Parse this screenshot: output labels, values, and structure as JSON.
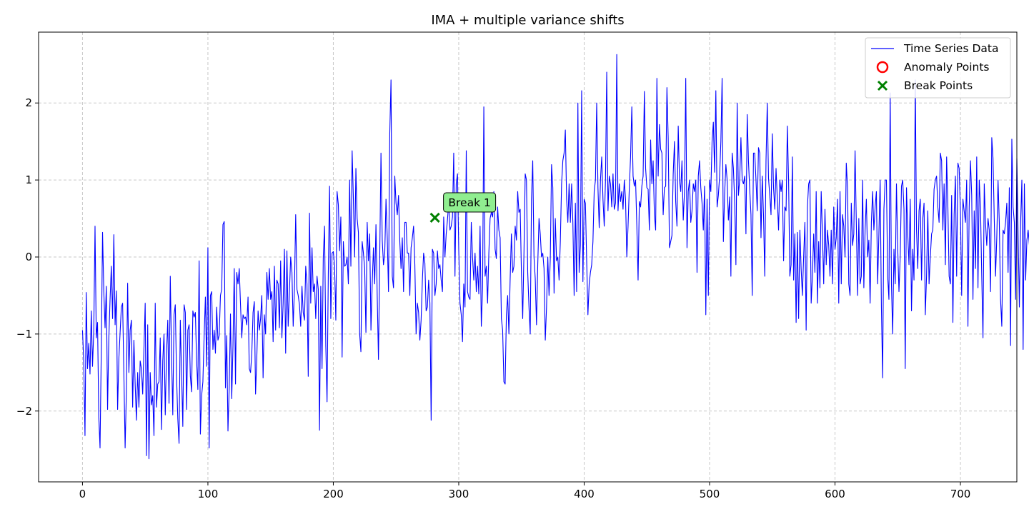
{
  "chart_data": {
    "type": "line",
    "title": "IMA + multiple variance shifts",
    "xlabel": "",
    "ylabel": "",
    "xlim": [
      -35,
      745
    ],
    "ylim": [
      -2.92,
      2.92
    ],
    "x_ticks": [
      0,
      100,
      200,
      300,
      400,
      500,
      600,
      700
    ],
    "y_ticks": [
      -2,
      -1,
      0,
      1,
      2
    ],
    "x_tick_labels": [
      "0",
      "100",
      "200",
      "300",
      "400",
      "500",
      "600",
      "700"
    ],
    "y_tick_labels": [
      "−2",
      "−1",
      "0",
      "1",
      "2"
    ],
    "grid": true,
    "legend_position": "top-right",
    "series": [
      {
        "name": "Time Series Data",
        "style": "line",
        "color": "#0000ff",
        "x_start": 0,
        "x_step": 1,
        "values": [
          -0.95,
          -1.35,
          -2.32,
          -0.46,
          -1.45,
          -1.12,
          -1.52,
          -0.7,
          -1.42,
          -0.95,
          0.4,
          -1.05,
          -0.85,
          -2.08,
          -2.48,
          -1.2,
          0.32,
          -0.45,
          -0.92,
          -0.38,
          -1.98,
          -1.05,
          -0.55,
          -0.12,
          -0.8,
          0.29,
          -0.88,
          -0.44,
          -1.98,
          -1.32,
          -0.98,
          -0.65,
          -0.6,
          -1.52,
          -2.48,
          -1.75,
          -0.34,
          -1.5,
          -0.95,
          -0.82,
          -1.95,
          -1.08,
          -1.65,
          -2.12,
          -1.5,
          -1.95,
          -1.35,
          -1.45,
          -1.78,
          -1.2,
          -0.6,
          -2.58,
          -0.88,
          -2.62,
          -1.5,
          -1.92,
          -1.8,
          -2.32,
          -0.6,
          -1.95,
          -1.65,
          -1.62,
          -1.05,
          -2.24,
          -1.35,
          -1.0,
          -2.05,
          -1.25,
          -0.82,
          -1.9,
          -0.25,
          -1.25,
          -2.05,
          -0.75,
          -0.62,
          -1.55,
          -2.1,
          -2.42,
          -0.82,
          -1.52,
          -2.2,
          -0.62,
          -0.72,
          -1.98,
          -0.95,
          -0.88,
          -1.55,
          -1.75,
          -0.7,
          -0.78,
          -0.72,
          -1.35,
          -1.72,
          -0.05,
          -2.3,
          -1.8,
          -1.62,
          -1.02,
          -0.52,
          -1.42,
          0.12,
          -2.48,
          -0.5,
          -0.45,
          -1.2,
          -0.95,
          -1.25,
          -0.65,
          -1.08,
          -1.02,
          -0.5,
          -0.42,
          0.42,
          0.46,
          -1.7,
          -1.02,
          -2.26,
          -1.68,
          -0.74,
          -1.84,
          -1.15,
          -0.15,
          -1.65,
          -0.2,
          -0.35,
          -0.15,
          -0.62,
          -1.05,
          -0.75,
          -0.8,
          -0.78,
          -0.88,
          -0.52,
          -1.45,
          -1.5,
          -1.25,
          -0.72,
          -0.58,
          -1.78,
          -1.3,
          -0.7,
          -0.95,
          -0.8,
          -0.5,
          -1.57,
          -0.75,
          -1.0,
          -0.2,
          -0.55,
          -0.15,
          -0.55,
          -0.45,
          -1.1,
          -0.12,
          -0.95,
          -0.3,
          -0.35,
          -0.92,
          -0.05,
          -1.05,
          -0.6,
          0.1,
          -1.25,
          0.08,
          -0.9,
          -0.45,
          0.0,
          -0.2,
          -0.9,
          -0.4,
          0.55,
          -0.42,
          -0.5,
          -0.62,
          -0.9,
          -0.38,
          -0.72,
          -0.82,
          -0.12,
          -0.35,
          -1.55,
          0.57,
          -0.6,
          0.12,
          -0.45,
          -0.35,
          -0.8,
          -0.25,
          -0.42,
          -2.25,
          -0.38,
          -1.45,
          0.0,
          0.4,
          -1.15,
          -1.88,
          -0.22,
          0.92,
          -0.8,
          0.05,
          0.07,
          -0.12,
          -0.82,
          0.85,
          0.68,
          0.08,
          0.52,
          -1.3,
          0.2,
          -0.12,
          -0.1,
          0.0,
          -0.35,
          1.0,
          -0.12,
          1.38,
          0.75,
          0.0,
          1.15,
          0.5,
          0.32,
          -1.0,
          -1.23,
          0.2,
          0.05,
          -0.15,
          -0.98,
          0.45,
          -0.05,
          0.3,
          -0.95,
          -0.35,
          0.12,
          -0.35,
          0.42,
          -0.5,
          -1.33,
          0.0,
          1.35,
          0.22,
          -0.1,
          0.05,
          0.75,
          0.25,
          -0.45,
          1.6,
          2.3,
          -0.25,
          -0.4,
          1.05,
          0.7,
          0.55,
          0.8,
          0.2,
          -0.15,
          0.25,
          -0.45,
          0.45,
          0.45,
          0.05,
          0.05,
          -0.5,
          0.12,
          0.25,
          0.4,
          -0.1,
          -1.0,
          -0.6,
          -0.72,
          -1.08,
          -0.82,
          -0.3,
          0.05,
          -0.08,
          -0.7,
          -0.65,
          -0.3,
          -0.6,
          -2.12,
          0.1,
          0.05,
          -0.5,
          -0.35,
          0.08,
          -0.15,
          -0.1,
          -0.3,
          -0.45,
          0.52,
          0.0,
          0.3,
          0.48,
          0.7,
          0.35,
          0.4,
          0.52,
          1.35,
          -0.25,
          0.95,
          1.08,
          0.1,
          -0.6,
          -0.75,
          -1.1,
          -0.35,
          -0.65,
          1.38,
          -0.45,
          -0.52,
          -0.55,
          0.45,
          0.0,
          -0.3,
          0.05,
          -0.45,
          -0.12,
          -0.48,
          0.4,
          -0.9,
          -0.4,
          1.95,
          -0.25,
          -0.12,
          -0.6,
          0.05,
          0.5,
          0.58,
          0.52,
          0.85,
          0.1,
          -0.02,
          0.65,
          0.35,
          0.25,
          -0.8,
          -0.95,
          -1.62,
          -1.65,
          -0.75,
          -0.5,
          -1.0,
          -0.28,
          0.3,
          -0.2,
          -0.12,
          0.4,
          0.22,
          0.85,
          0.58,
          0.62,
          -0.22,
          -0.8,
          0.05,
          1.08,
          1.0,
          -0.2,
          -0.65,
          -1.0,
          0.75,
          1.25,
          0.0,
          -0.28,
          -0.88,
          -0.1,
          0.5,
          0.3,
          0.0,
          0.05,
          -0.15,
          -1.08,
          -0.65,
          0.0,
          -0.5,
          -0.02,
          1.2,
          0.9,
          -0.47,
          0.5,
          -0.05,
          0.0,
          -0.3,
          0.2,
          0.95,
          1.25,
          1.35,
          1.65,
          0.75,
          0.45,
          0.95,
          0.45,
          0.95,
          0.45,
          -0.5,
          0.7,
          -0.45,
          2.0,
          -0.2,
          0.15,
          2.16,
          -0.32,
          0.75,
          0.7,
          -0.05,
          -0.75,
          -0.35,
          -0.2,
          -0.1,
          0.2,
          0.85,
          1.0,
          2.0,
          0.9,
          0.38,
          1.0,
          1.3,
          0.75,
          0.4,
          1.0,
          2.4,
          0.6,
          1.05,
          0.95,
          0.65,
          1.08,
          0.62,
          0.7,
          2.63,
          0.6,
          0.95,
          0.72,
          0.85,
          0.62,
          1.0,
          0.75,
          0.0,
          0.4,
          0.9,
          1.3,
          1.95,
          1.05,
          0.92,
          1.0,
          0.4,
          -0.3,
          0.72,
          0.65,
          0.92,
          1.05,
          2.15,
          1.15,
          0.9,
          0.88,
          0.35,
          1.52,
          0.95,
          1.25,
          0.55,
          0.35,
          2.32,
          1.05,
          1.72,
          1.4,
          1.35,
          0.55,
          0.9,
          0.92,
          2.2,
          1.55,
          0.12,
          0.2,
          0.28,
          1.08,
          1.5,
          0.72,
          0.4,
          1.7,
          1.0,
          0.85,
          1.25,
          0.48,
          0.85,
          2.32,
          0.12,
          0.85,
          1.0,
          0.45,
          0.6,
          0.95,
          0.85,
          1.0,
          -0.2,
          1.05,
          1.25,
          0.9,
          0.7,
          0.35,
          0.92,
          -0.75,
          0.75,
          -0.5,
          1.0,
          0.85,
          1.5,
          1.75,
          1.1,
          2.16,
          0.65,
          0.8,
          1.05,
          1.5,
          2.32,
          0.2,
          0.82,
          1.2,
          1.0,
          0.48,
          0.78,
          -0.25,
          1.35,
          1.15,
          0.72,
          -0.1,
          2.0,
          0.8,
          1.0,
          1.55,
          1.0,
          0.95,
          1.05,
          0.3,
          1.85,
          1.25,
          0.88,
          0.55,
          -0.5,
          1.35,
          1.35,
          1.0,
          0.6,
          1.42,
          1.35,
          0.25,
          1.05,
          0.55,
          -0.25,
          1.25,
          2.0,
          1.02,
          0.8,
          0.55,
          1.6,
          0.9,
          0.62,
          1.15,
          0.75,
          0.35,
          1.0,
          0.85,
          1.0,
          -0.05,
          0.65,
          0.6,
          1.7,
          1.0,
          -0.25,
          -0.1,
          1.3,
          -0.3,
          0.3,
          -0.85,
          0.32,
          -0.8,
          0.35,
          -0.15,
          -0.5,
          0.0,
          0.45,
          -0.95,
          0.65,
          0.95,
          1.0,
          -0.6,
          -0.25,
          0.3,
          -0.2,
          0.85,
          -0.6,
          0.2,
          -0.4,
          0.85,
          0.28,
          -0.35,
          0.62,
          -0.1,
          0.35,
          0.15,
          -0.25,
          0.35,
          -0.35,
          0.65,
          0.1,
          0.25,
          0.75,
          -0.6,
          0.85,
          -0.35,
          0.55,
          0.4,
          0.0,
          1.22,
          0.9,
          -0.35,
          -0.5,
          0.7,
          0.15,
          0.3,
          1.38,
          0.45,
          -0.5,
          0.5,
          -0.35,
          -0.25,
          1.0,
          -0.4,
          0.35,
          0.75,
          0.0,
          0.22,
          -0.6,
          0.45,
          0.85,
          0.35,
          0.65,
          0.85,
          -0.35,
          0.3,
          1.0,
          -0.65,
          -1.57,
          0.62,
          1.0,
          1.0,
          -0.25,
          -0.55,
          2.13,
          -0.35,
          -1.0,
          0.1,
          -0.35,
          0.95,
          0.12,
          -0.45,
          0.0,
          0.92,
          1.0,
          0.62,
          -1.45,
          0.9,
          0.3,
          -0.1,
          0.75,
          -0.7,
          0.1,
          -0.3,
          2.3,
          0.35,
          -0.15,
          0.6,
          0.75,
          -0.3,
          0.5,
          0.7,
          -0.75,
          -0.25,
          0.6,
          -0.35,
          0.0,
          0.3,
          0.35,
          0.88,
          1.0,
          1.05,
          0.65,
          0.45,
          1.35,
          1.25,
          0.35,
          0.95,
          -0.1,
          1.3,
          0.65,
          -0.25,
          -0.35,
          0.8,
          -0.85,
          0.55,
          1.05,
          -0.25,
          1.22,
          1.15,
          0.6,
          -0.5,
          0.75,
          0.6,
          0.45,
          1.0,
          -0.9,
          0.65,
          1.25,
          0.8,
          -0.55,
          0.6,
          -0.15,
          1.3,
          -0.4,
          1.0,
          0.65,
          -0.25,
          -1.05,
          0.95,
          0.45,
          0.15,
          0.5,
          0.35,
          -0.45,
          1.55,
          1.28,
          0.48,
          -0.25,
          0.25,
          1.0,
          0.45,
          -0.55,
          -0.9,
          0.35,
          0.3,
          0.45,
          0.7,
          -0.2,
          0.9,
          -1.15,
          1.53,
          0.65,
          0.45,
          -0.55,
          1.28,
          0.3,
          -0.65,
          0.45,
          1.0,
          -1.2,
          0.95,
          -0.3,
          0.22,
          0.35,
          0.15,
          0.45,
          -0.55,
          0.6,
          0.35,
          -0.9,
          0.1,
          0.65,
          0.75,
          -0.25,
          0.15,
          -1.05,
          0.15,
          1.12,
          0.55,
          -0.25,
          0.2,
          -0.15,
          0.45,
          0.85,
          0.3,
          -0.6,
          0.75,
          0.62,
          0.6,
          1.35,
          0.3,
          -0.45,
          -0.55,
          -0.15,
          0.1,
          0.35,
          -0.85,
          -1.18,
          -0.82
        ]
      },
      {
        "name": "Anomaly Points",
        "style": "scatter",
        "marker": "open-circle",
        "color": "#ff0000",
        "x": [],
        "y": []
      },
      {
        "name": "Break Points",
        "style": "scatter",
        "marker": "x",
        "color": "#008000",
        "x": [
          281
        ],
        "y": [
          0.51
        ]
      }
    ],
    "annotations": [
      {
        "text": "Break 1",
        "x": 281,
        "y": 0.51,
        "box_color": "#90ee90"
      }
    ]
  }
}
